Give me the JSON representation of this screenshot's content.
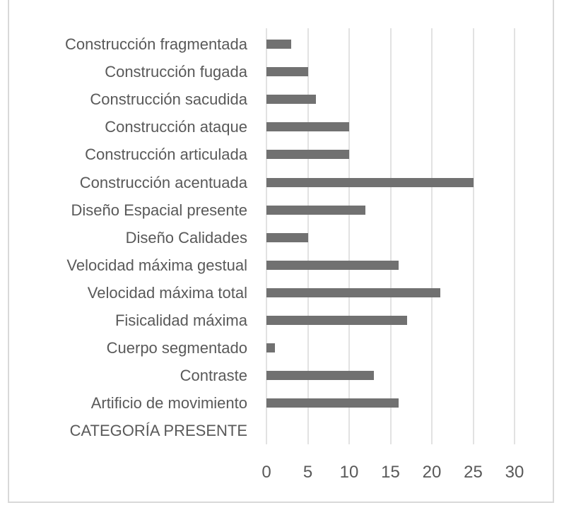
{
  "chart_data": {
    "type": "bar",
    "orientation": "horizontal",
    "title": "",
    "xlabel": "",
    "ylabel": "",
    "xlim": [
      0,
      30
    ],
    "x_ticks": [
      "0",
      "5",
      "10",
      "15",
      "20",
      "25",
      "30"
    ],
    "grid": "vertical",
    "legend": "none",
    "bar_color": "#717171",
    "categories": [
      "Construcción fragmentada",
      "Construcción fugada",
      "Construcción sacudida",
      "Construcción ataque",
      "Construcción articulada",
      "Construcción acentuada",
      "Diseño Espacial presente",
      "Diseño Calidades",
      "Velocidad máxima gestual",
      "Velocidad máxima total",
      "Fisicalidad máxima",
      "Cuerpo segmentado",
      "Contraste",
      "Artificio de movimiento",
      "CATEGORÍA PRESENTE"
    ],
    "values": [
      3,
      5,
      6,
      10,
      10,
      25,
      12,
      5,
      16,
      21,
      17,
      1,
      13,
      16,
      null
    ]
  }
}
